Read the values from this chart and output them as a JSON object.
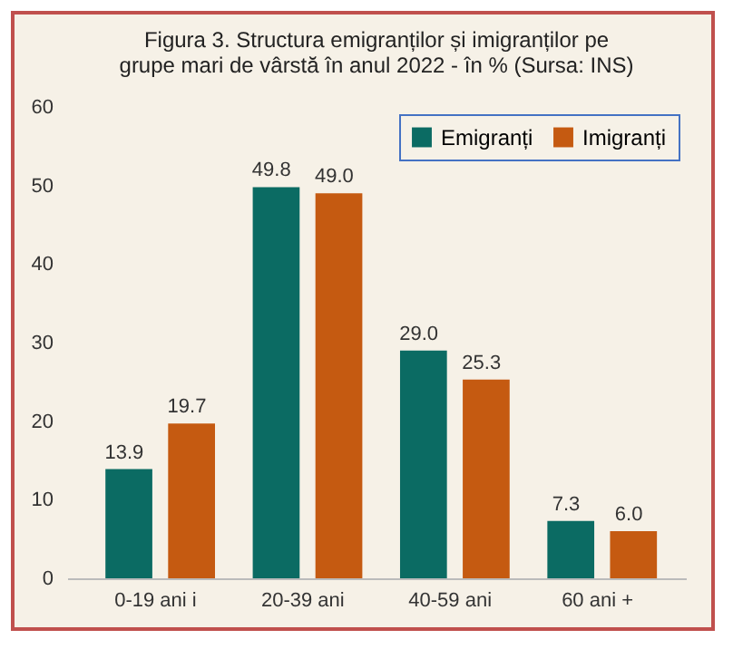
{
  "chart_data": {
    "type": "bar",
    "title": [
      "Figura 3. Structura emigranților și imigranților pe",
      "grupe mari de vârstă în anul 2022 - în % (Sursa: INS)"
    ],
    "categories": [
      "0-19 ani i",
      "20-39 ani",
      "40-59 ani",
      "60 ani +"
    ],
    "series": [
      {
        "name": "Emigranți",
        "color": "#0b6b63",
        "values": [
          13.9,
          49.8,
          29.0,
          7.3
        ],
        "value_labels": [
          "13.9",
          "49.8",
          "29.0",
          "7.3"
        ]
      },
      {
        "name": "Imigranți",
        "color": "#c55a11",
        "values": [
          19.7,
          49.0,
          25.3,
          6.0
        ],
        "value_labels": [
          "19.7",
          "49.0",
          "25.3",
          "6.0"
        ]
      }
    ],
    "ylim": [
      0,
      60
    ],
    "yticks": [
      0,
      10,
      20,
      30,
      40,
      50,
      60
    ],
    "grid": false,
    "legend": "top right"
  }
}
